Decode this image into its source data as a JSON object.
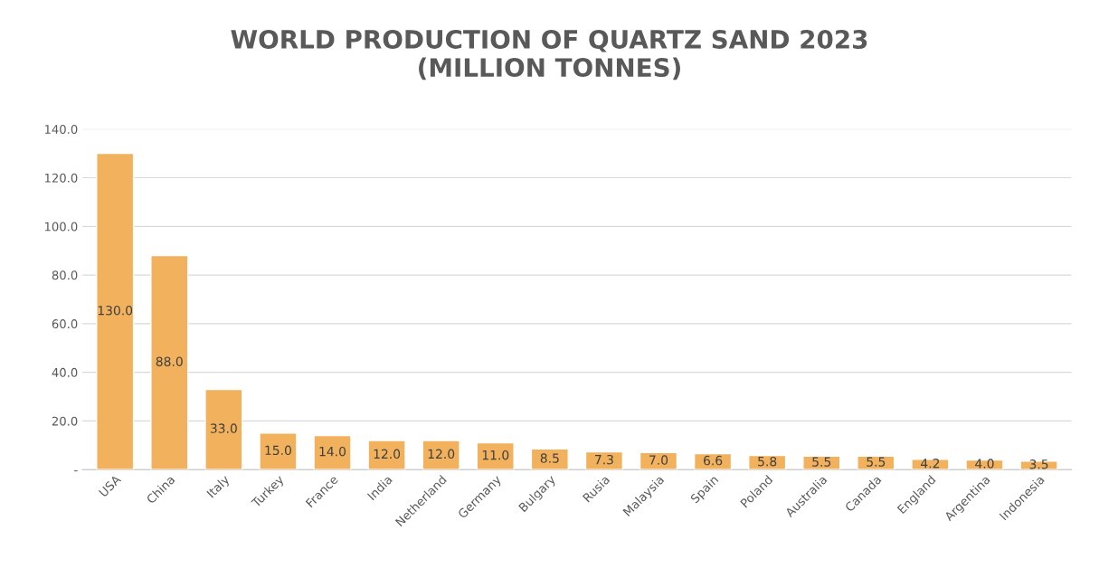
{
  "chart_data": {
    "type": "bar",
    "title": "WORLD PRODUCTION OF QUARTZ SAND 2023\n(MILLION TONNES)",
    "categories": [
      "USA",
      "China",
      "Italy",
      "Turkey",
      "France",
      "India",
      "Netherland",
      "Germany",
      "Bulgary",
      "Rusia",
      "Malaysia",
      "Spain",
      "Poland",
      "Australia",
      "Canada",
      "England",
      "Argentina",
      "Indonesia"
    ],
    "values": [
      130,
      88,
      33,
      15,
      14,
      12,
      12,
      11,
      8.5,
      7.3,
      7.0,
      6.6,
      5.8,
      5.5,
      5.5,
      4.2,
      4.0,
      3.5
    ],
    "value_labels": [
      "130.0",
      "88.0",
      "33.0",
      "15.0",
      "14.0",
      "12.0",
      "12.0",
      "11.0",
      "8.5",
      "7.3",
      "7.0",
      "6.6",
      "5.8",
      "5.5",
      "5.5",
      "4.2",
      "4.0",
      "3.5"
    ],
    "color": "#f2b15c",
    "ylim": [
      0,
      140
    ],
    "yticks": [
      {
        "value": 0,
        "label": "-"
      },
      {
        "value": 20,
        "label": "20.0"
      },
      {
        "value": 40,
        "label": "40.0"
      },
      {
        "value": 60,
        "label": "60.0"
      },
      {
        "value": 80,
        "label": "80.0"
      },
      {
        "value": 100,
        "label": "100.0"
      },
      {
        "value": 120,
        "label": "120.0"
      },
      {
        "value": 140,
        "label": "140.0"
      }
    ],
    "grid": "y"
  }
}
